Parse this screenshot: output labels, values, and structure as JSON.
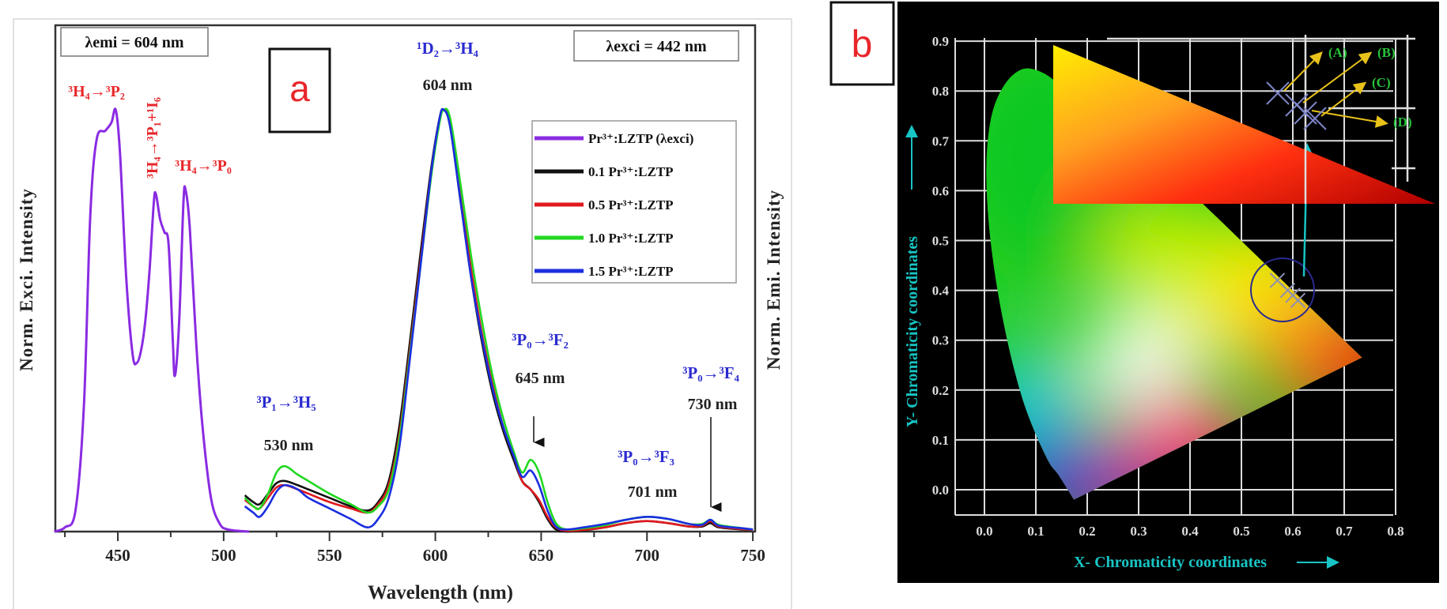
{
  "panel_labels": {
    "a": "a",
    "b": "b"
  },
  "chart_data": [
    {
      "type": "line",
      "panel": "a",
      "xlabel": "Wavelength (nm)",
      "ylabel_left": "Norm. Exci. Intensity",
      "ylabel_right": "Norm. Emi. Intensity",
      "xlim": [
        420,
        751
      ],
      "ylim": [
        0,
        1
      ],
      "x_ticks": [
        "450",
        "500",
        "550",
        "600",
        "650",
        "700",
        "750"
      ],
      "x_tick_values": [
        450,
        500,
        550,
        600,
        650,
        700,
        750
      ],
      "grid": false,
      "legend_placement": "right",
      "condition_boxes": {
        "emission": "λemi = 604 nm",
        "excitation": "λexci = 442 nm"
      },
      "excitation_series": {
        "name": "Pr³⁺:LZTP (λexci)",
        "color": "#8a2be2",
        "x": [
          420,
          425,
          430,
          434,
          437,
          440,
          444,
          447,
          449,
          451,
          454,
          457,
          459,
          461,
          463,
          465,
          467,
          468,
          470,
          472,
          474,
          476,
          477,
          479,
          481,
          482,
          484,
          487,
          490,
          494,
          498,
          502,
          512
        ],
        "y": [
          0,
          0.01,
          0.05,
          0.3,
          0.75,
          0.93,
          0.95,
          0.97,
          1.0,
          0.9,
          0.6,
          0.42,
          0.4,
          0.43,
          0.5,
          0.62,
          0.78,
          0.8,
          0.74,
          0.71,
          0.68,
          0.45,
          0.37,
          0.5,
          0.78,
          0.81,
          0.72,
          0.45,
          0.25,
          0.08,
          0.02,
          0.005,
          0
        ]
      },
      "emission_x": [
        510,
        514,
        517,
        521,
        525,
        529,
        535,
        540,
        550,
        560,
        568,
        573,
        578,
        583,
        588,
        593,
        598,
        602,
        604,
        607,
        612,
        617,
        622,
        627,
        632,
        637,
        641,
        645,
        649,
        653,
        657,
        662,
        670,
        680,
        690,
        700,
        710,
        720,
        726,
        730,
        734,
        745,
        750
      ],
      "emission_series": [
        {
          "name": "0.1 Pr³⁺:LZTP",
          "color": "#111111",
          "y": [
            0.086,
            0.07,
            0.065,
            0.09,
            0.115,
            0.12,
            0.11,
            0.1,
            0.08,
            0.06,
            0.05,
            0.07,
            0.12,
            0.25,
            0.45,
            0.66,
            0.86,
            0.98,
            1.0,
            0.96,
            0.78,
            0.6,
            0.45,
            0.33,
            0.24,
            0.17,
            0.12,
            0.1,
            0.07,
            0.03,
            0.005,
            0,
            0.003,
            0.01,
            0.02,
            0.025,
            0.02,
            0.012,
            0.012,
            0.02,
            0.01,
            0.005,
            0.004
          ]
        },
        {
          "name": "0.5 Pr³⁺:LZTP",
          "color": "#e0191e",
          "y": [
            0.075,
            0.06,
            0.055,
            0.08,
            0.105,
            0.11,
            0.1,
            0.09,
            0.07,
            0.055,
            0.045,
            0.065,
            0.11,
            0.23,
            0.43,
            0.64,
            0.85,
            0.98,
            1.0,
            0.97,
            0.8,
            0.62,
            0.47,
            0.35,
            0.25,
            0.18,
            0.12,
            0.1,
            0.075,
            0.035,
            0.01,
            0.002,
            0.004,
            0.01,
            0.02,
            0.025,
            0.02,
            0.012,
            0.014,
            0.025,
            0.012,
            0.006,
            0.004
          ]
        },
        {
          "name": "1.0 Pr³⁺:LZTP",
          "color": "#22d822",
          "y": [
            0.08,
            0.06,
            0.055,
            0.09,
            0.14,
            0.155,
            0.135,
            0.12,
            0.09,
            0.065,
            0.045,
            0.06,
            0.1,
            0.22,
            0.42,
            0.63,
            0.84,
            0.97,
            1.0,
            0.98,
            0.82,
            0.65,
            0.5,
            0.37,
            0.27,
            0.19,
            0.14,
            0.17,
            0.14,
            0.07,
            0.02,
            0.005,
            0.008,
            0.015,
            0.028,
            0.035,
            0.03,
            0.018,
            0.018,
            0.028,
            0.016,
            0.008,
            0.005
          ]
        },
        {
          "name": "1.5 Pr³⁺:LZTP",
          "color": "#1a2ee0",
          "y": [
            0.06,
            0.045,
            0.035,
            0.06,
            0.095,
            0.11,
            0.1,
            0.08,
            0.055,
            0.03,
            0.01,
            0.03,
            0.08,
            0.2,
            0.41,
            0.63,
            0.85,
            0.98,
            1.0,
            0.96,
            0.78,
            0.6,
            0.46,
            0.34,
            0.25,
            0.18,
            0.13,
            0.145,
            0.11,
            0.05,
            0.012,
            0.005,
            0.01,
            0.018,
            0.028,
            0.035,
            0.03,
            0.018,
            0.016,
            0.028,
            0.014,
            0.008,
            0.005
          ]
        }
      ],
      "annotations": {
        "p2": "³H₄→³P₂",
        "p1": "³H₄→³P₁+¹I₆",
        "p0": "³H₄→³P₀",
        "d2": "¹D₂→³H₄",
        "d2_nm": "604 nm",
        "h5": "³P₁→³H₅",
        "h5_nm": "530 nm",
        "f2": "³P₀→³F₂",
        "f2_nm": "645 nm",
        "f3": "³P₀→³F₃",
        "f3_nm": "701 nm",
        "f4": "³P₀→³F₄",
        "f4_nm": "730 nm"
      }
    },
    {
      "type": "scatter",
      "panel": "b",
      "xlabel": "X- Chromaticity  coordinates",
      "ylabel": "Y- Chromaticity coordinates",
      "xlim": [
        0.0,
        0.8
      ],
      "ylim": [
        0.0,
        0.9
      ],
      "x_ticks": [
        "0.0",
        "0.1",
        "0.2",
        "0.3",
        "0.4",
        "0.5",
        "0.6",
        "0.7",
        "0.8"
      ],
      "y_ticks": [
        "0.0",
        "0.1",
        "0.2",
        "0.3",
        "0.4",
        "0.5",
        "0.6",
        "0.7",
        "0.8",
        "0.9"
      ],
      "grid": true,
      "background": "#000000",
      "axis_label_color": "#19c4c4",
      "points": [
        {
          "label": "(A)",
          "x": 0.57,
          "y": 0.42
        },
        {
          "label": "(B)",
          "x": 0.59,
          "y": 0.4
        },
        {
          "label": "(D)",
          "x": 0.6,
          "y": 0.39
        },
        {
          "label": "(C)",
          "x": 0.61,
          "y": 0.38
        }
      ]
    }
  ]
}
